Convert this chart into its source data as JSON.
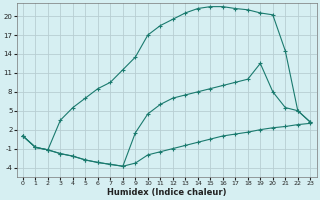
{
  "xlabel": "Humidex (Indice chaleur)",
  "bg_color": "#d6eff2",
  "grid_color": "#c8dde0",
  "line_color": "#1a7a6e",
  "xlim": [
    -0.5,
    23.5
  ],
  "ylim": [
    -5.5,
    22
  ],
  "xticks": [
    0,
    1,
    2,
    3,
    4,
    5,
    6,
    7,
    8,
    9,
    10,
    11,
    12,
    13,
    14,
    15,
    16,
    17,
    18,
    19,
    20,
    21,
    22,
    23
  ],
  "yticks": [
    -4,
    -1,
    2,
    5,
    8,
    11,
    14,
    17,
    20
  ],
  "line1_x": [
    0,
    1,
    2,
    3,
    4,
    5,
    6,
    7,
    8,
    9,
    10,
    11,
    12,
    13,
    14,
    15,
    16,
    17,
    18,
    19,
    20,
    21,
    22,
    23
  ],
  "line1_y": [
    1.0,
    -0.8,
    -1.2,
    -1.8,
    -2.2,
    -2.8,
    -3.2,
    -3.5,
    -3.8,
    -3.3,
    -2.0,
    -1.5,
    -1.0,
    -0.5,
    0.0,
    0.5,
    1.0,
    1.3,
    1.6,
    2.0,
    2.3,
    2.5,
    2.8,
    3.0
  ],
  "line2_x": [
    0,
    1,
    2,
    3,
    4,
    5,
    6,
    7,
    8,
    9,
    10,
    11,
    12,
    13,
    14,
    15,
    16,
    17,
    18,
    19,
    20,
    21,
    22,
    23
  ],
  "line2_y": [
    1.0,
    -0.8,
    -1.2,
    3.5,
    5.5,
    7.0,
    8.5,
    9.5,
    11.5,
    13.5,
    17.0,
    18.5,
    19.5,
    20.5,
    21.2,
    21.5,
    21.5,
    21.2,
    21.0,
    20.5,
    20.2,
    14.5,
    5.0,
    3.2
  ],
  "line3_x": [
    0,
    1,
    2,
    3,
    4,
    5,
    6,
    7,
    8,
    9,
    10,
    11,
    12,
    13,
    14,
    15,
    16,
    17,
    18,
    19,
    20,
    21,
    22,
    23
  ],
  "line3_y": [
    1.0,
    -0.8,
    -1.2,
    -1.8,
    -2.2,
    -2.8,
    -3.2,
    -3.5,
    -3.8,
    1.5,
    4.5,
    6.0,
    7.0,
    7.5,
    8.0,
    8.5,
    9.0,
    9.5,
    10.0,
    12.5,
    8.0,
    5.5,
    5.0,
    3.2
  ]
}
